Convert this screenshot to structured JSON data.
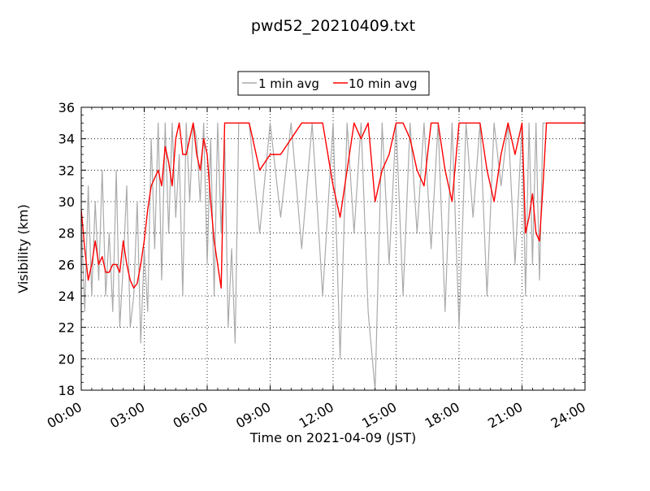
{
  "chart_data": {
    "type": "line",
    "title": "pwd52_20210409.txt",
    "xlabel": "Time on 2021-04-09 (JST)",
    "ylabel": "Visibility (km)",
    "xlim": [
      "00:00",
      "24:00"
    ],
    "ylim": [
      18,
      36
    ],
    "xticks": [
      "00:00",
      "03:00",
      "06:00",
      "09:00",
      "12:00",
      "15:00",
      "18:00",
      "21:00",
      "24:00"
    ],
    "yticks": [
      "18",
      "20",
      "22",
      "24",
      "26",
      "28",
      "30",
      "32",
      "34",
      "36"
    ],
    "grid": true,
    "legend_position": "top-center",
    "series": [
      {
        "name": "1 min avg",
        "color": "#aaaaaa",
        "x": [
          "00:00",
          "00:10",
          "00:20",
          "00:30",
          "00:40",
          "00:50",
          "01:00",
          "01:10",
          "01:20",
          "01:30",
          "01:40",
          "01:50",
          "02:00",
          "02:10",
          "02:20",
          "02:30",
          "02:40",
          "02:50",
          "03:00",
          "03:10",
          "03:20",
          "03:30",
          "03:40",
          "03:50",
          "04:00",
          "04:10",
          "04:20",
          "04:30",
          "04:40",
          "04:50",
          "05:00",
          "05:10",
          "05:20",
          "05:30",
          "05:40",
          "05:50",
          "06:00",
          "06:10",
          "06:20",
          "06:30",
          "06:40",
          "06:50",
          "07:00",
          "07:10",
          "07:20",
          "07:30",
          "07:40",
          "07:50",
          "08:00",
          "08:30",
          "09:00",
          "09:30",
          "10:00",
          "10:30",
          "11:00",
          "11:30",
          "12:00",
          "12:20",
          "12:40",
          "13:00",
          "13:20",
          "13:40",
          "14:00",
          "14:20",
          "14:40",
          "15:00",
          "15:20",
          "15:40",
          "16:00",
          "16:20",
          "16:40",
          "17:00",
          "17:20",
          "17:40",
          "18:00",
          "18:20",
          "18:40",
          "19:00",
          "19:20",
          "19:40",
          "20:00",
          "20:20",
          "20:40",
          "21:00",
          "21:10",
          "21:20",
          "21:30",
          "21:40",
          "21:50",
          "22:00",
          "22:10",
          "22:20",
          "22:30",
          "23:00",
          "23:30",
          "24:00"
        ],
        "values": [
          29,
          23,
          31,
          24,
          30,
          25,
          32,
          24,
          28,
          23,
          32,
          22,
          26,
          31,
          22,
          24,
          30,
          21,
          27,
          23,
          34,
          27,
          35,
          25,
          35,
          28,
          35,
          29,
          33,
          24,
          35,
          30,
          35,
          34,
          30,
          35,
          26,
          34,
          24,
          35,
          28,
          34,
          22,
          27,
          21,
          35,
          35,
          35,
          35,
          28,
          35,
          29,
          35,
          27,
          35,
          24,
          35,
          20,
          35,
          28,
          35,
          23,
          18,
          35,
          26,
          35,
          24,
          35,
          28,
          35,
          27,
          35,
          23,
          35,
          22,
          35,
          29,
          35,
          24,
          35,
          31,
          35,
          26,
          35,
          24,
          35,
          26,
          35,
          25,
          35,
          35,
          35,
          35,
          35,
          35,
          35
        ]
      },
      {
        "name": "10 min avg",
        "color": "#ff0000",
        "x": [
          "00:00",
          "00:10",
          "00:20",
          "00:30",
          "00:40",
          "00:50",
          "01:00",
          "01:10",
          "01:20",
          "01:30",
          "01:40",
          "01:50",
          "02:00",
          "02:10",
          "02:20",
          "02:30",
          "02:40",
          "02:50",
          "03:00",
          "03:10",
          "03:20",
          "03:30",
          "03:40",
          "03:50",
          "04:00",
          "04:10",
          "04:20",
          "04:30",
          "04:40",
          "04:50",
          "05:00",
          "05:10",
          "05:20",
          "05:30",
          "05:40",
          "05:50",
          "06:00",
          "06:10",
          "06:20",
          "06:30",
          "06:40",
          "06:50",
          "07:00",
          "07:10",
          "07:20",
          "07:30",
          "07:40",
          "07:50",
          "08:00",
          "08:30",
          "09:00",
          "09:30",
          "10:00",
          "10:30",
          "11:00",
          "11:30",
          "12:00",
          "12:20",
          "12:40",
          "13:00",
          "13:20",
          "13:40",
          "14:00",
          "14:20",
          "14:40",
          "15:00",
          "15:20",
          "15:40",
          "16:00",
          "16:20",
          "16:40",
          "17:00",
          "17:20",
          "17:40",
          "18:00",
          "18:20",
          "18:40",
          "19:00",
          "19:20",
          "19:40",
          "20:00",
          "20:20",
          "20:40",
          "21:00",
          "21:10",
          "21:20",
          "21:30",
          "21:40",
          "21:50",
          "22:00",
          "22:10",
          "22:20",
          "22:30",
          "23:00",
          "23:30",
          "24:00"
        ],
        "values": [
          29.5,
          27,
          25,
          26,
          27.5,
          26,
          26.5,
          25.5,
          25.5,
          26,
          26,
          25.5,
          27.5,
          26,
          25,
          24.5,
          24.8,
          26,
          27.5,
          29.5,
          31,
          31.5,
          32,
          31,
          33.5,
          32.5,
          31,
          34,
          35,
          33,
          33,
          34,
          35,
          33,
          32,
          34,
          33,
          30,
          27.5,
          26,
          24.5,
          35,
          35,
          35,
          35,
          35,
          35,
          35,
          35,
          32,
          33,
          33,
          34,
          35,
          35,
          35,
          31,
          29,
          32,
          35,
          34,
          35,
          30,
          32,
          33,
          35,
          35,
          34,
          32,
          31,
          35,
          35,
          32,
          30,
          35,
          35,
          35,
          35,
          32,
          30,
          33,
          35,
          33,
          35,
          28,
          29,
          30.5,
          28,
          27.5,
          31,
          35,
          35,
          35,
          35,
          35,
          35
        ]
      }
    ]
  }
}
